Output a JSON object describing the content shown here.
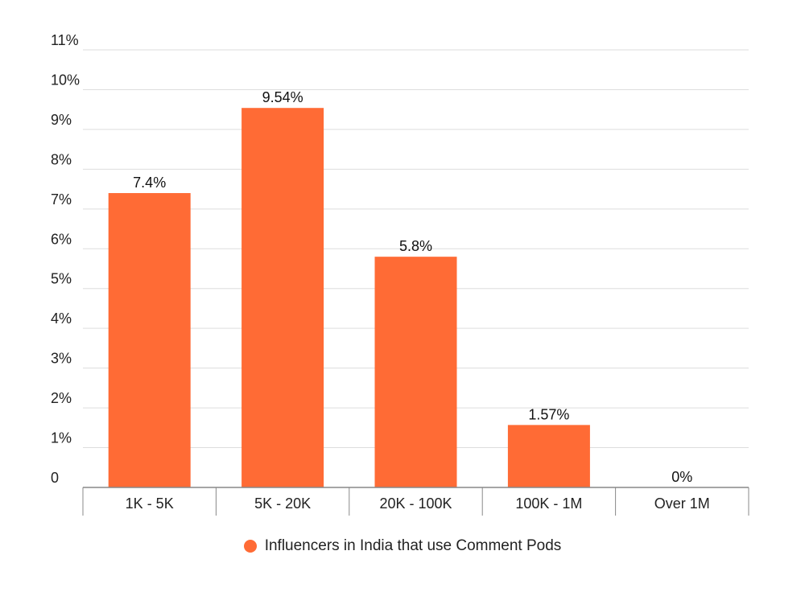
{
  "chart_data": {
    "type": "bar",
    "categories": [
      "1K - 5K",
      "5K - 20K",
      "20K - 100K",
      "100K - 1M",
      "Over 1M"
    ],
    "series": [
      {
        "name": "Influencers in India that use Comment Pods",
        "values": [
          7.4,
          9.54,
          5.8,
          1.57,
          0
        ],
        "data_labels": [
          "7.4%",
          "9.54%",
          "5.8%",
          "1.57%",
          "0%"
        ]
      }
    ],
    "ylim": [
      0,
      11
    ],
    "yticks": [
      {
        "value": 0,
        "label": "0"
      },
      {
        "value": 1,
        "label": "1%"
      },
      {
        "value": 2,
        "label": "2%"
      },
      {
        "value": 3,
        "label": "3%"
      },
      {
        "value": 4,
        "label": "4%"
      },
      {
        "value": 5,
        "label": "5%"
      },
      {
        "value": 6,
        "label": "6%"
      },
      {
        "value": 7,
        "label": "7%"
      },
      {
        "value": 8,
        "label": "8%"
      },
      {
        "value": 9,
        "label": "9%"
      },
      {
        "value": 10,
        "label": "10%"
      },
      {
        "value": 11,
        "label": "11%"
      }
    ],
    "grid": true,
    "legend_position": "bottom-center",
    "colors": {
      "bar": "#ff6b35",
      "grid": "#dddddd",
      "axis": "#888888",
      "text": "#222222"
    }
  }
}
